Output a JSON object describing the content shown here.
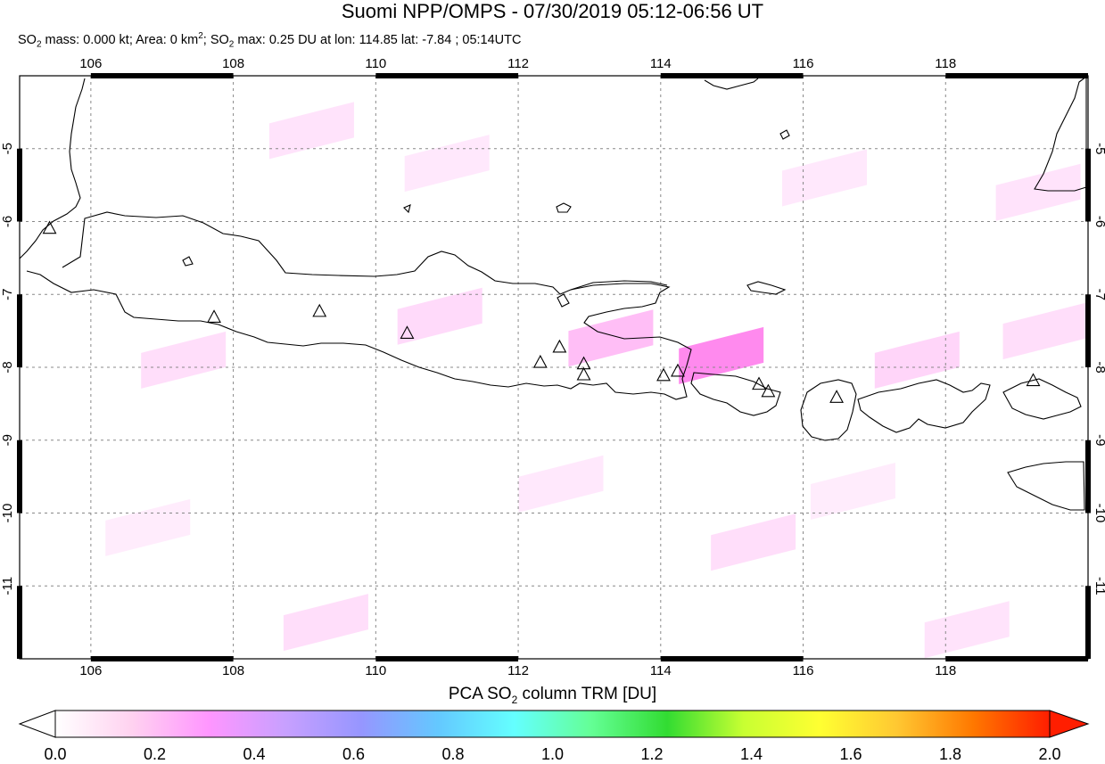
{
  "title": "Suomi NPP/OMPS - 07/30/2019 05:12-06:56 UT",
  "subtitle": {
    "mass_prefix": "SO",
    "mass_sub": "2",
    "mass_text": " mass: 0.000 kt; Area: 0 km",
    "area_sup": "2",
    "max_prefix": "; SO",
    "max_sub": "2",
    "max_text": " max: 0.25 DU at lon: 114.85 lat: -7.84 ; 05:14UTC"
  },
  "colorbar": {
    "title_prefix": "PCA SO",
    "title_sub": "2",
    "title_suffix": " column TRM [DU]",
    "tick_labels": [
      "0.0",
      "0.2",
      "0.4",
      "0.6",
      "0.8",
      "1.0",
      "1.2",
      "1.4",
      "1.6",
      "1.8",
      "2.0"
    ],
    "colors": [
      "#ffffff",
      "#ffd2f0",
      "#ff96ff",
      "#c8a0ff",
      "#9696ff",
      "#64c8ff",
      "#64ffff",
      "#64ff96",
      "#32dc32",
      "#c8ff32",
      "#ffff32",
      "#ffc832",
      "#ff7800",
      "#ff1e00"
    ]
  },
  "map": {
    "lon_range": [
      105,
      120
    ],
    "lat_range": [
      -12,
      -4
    ],
    "lon_ticks": [
      106,
      108,
      110,
      112,
      114,
      116,
      118
    ],
    "lat_ticks": [
      -5,
      -6,
      -7,
      -8,
      -9,
      -10,
      -11
    ],
    "lon_labels": [
      "106",
      "108",
      "110",
      "112",
      "114",
      "116",
      "118"
    ],
    "lat_labels": [
      "-5",
      "-6",
      "-7",
      "-8",
      "-9",
      "-10",
      "-11"
    ],
    "volcanoes": [
      {
        "lon": 105.42,
        "lat": -6.1
      },
      {
        "lon": 107.73,
        "lat": -7.32
      },
      {
        "lon": 109.21,
        "lat": -7.24
      },
      {
        "lon": 110.44,
        "lat": -7.54
      },
      {
        "lon": 112.31,
        "lat": -7.94
      },
      {
        "lon": 112.58,
        "lat": -7.73
      },
      {
        "lon": 112.92,
        "lat": -7.96
      },
      {
        "lon": 112.92,
        "lat": -8.11
      },
      {
        "lon": 114.04,
        "lat": -8.12
      },
      {
        "lon": 114.24,
        "lat": -8.06
      },
      {
        "lon": 115.38,
        "lat": -8.24
      },
      {
        "lon": 115.51,
        "lat": -8.34
      },
      {
        "lon": 116.47,
        "lat": -8.42
      },
      {
        "lon": 119.23,
        "lat": -8.19
      }
    ],
    "so2_patches": [
      {
        "lon": 109.1,
        "lat": -4.75,
        "value": 0.06
      },
      {
        "lon": 111.0,
        "lat": -5.2,
        "value": 0.05
      },
      {
        "lon": 107.3,
        "lat": -7.9,
        "value": 0.07
      },
      {
        "lon": 110.9,
        "lat": -7.3,
        "value": 0.08
      },
      {
        "lon": 113.3,
        "lat": -7.6,
        "value": 0.14
      },
      {
        "lon": 114.85,
        "lat": -7.84,
        "value": 0.25
      },
      {
        "lon": 116.3,
        "lat": -5.4,
        "value": 0.05
      },
      {
        "lon": 117.6,
        "lat": -7.9,
        "value": 0.09
      },
      {
        "lon": 119.3,
        "lat": -5.6,
        "value": 0.06
      },
      {
        "lon": 119.4,
        "lat": -7.5,
        "value": 0.07
      },
      {
        "lon": 112.6,
        "lat": -9.6,
        "value": 0.05
      },
      {
        "lon": 115.3,
        "lat": -10.4,
        "value": 0.07
      },
      {
        "lon": 109.3,
        "lat": -11.5,
        "value": 0.07
      },
      {
        "lon": 118.3,
        "lat": -11.6,
        "value": 0.06
      },
      {
        "lon": 106.8,
        "lat": -10.2,
        "value": 0.04
      },
      {
        "lon": 116.7,
        "lat": -9.7,
        "value": 0.04
      }
    ]
  }
}
